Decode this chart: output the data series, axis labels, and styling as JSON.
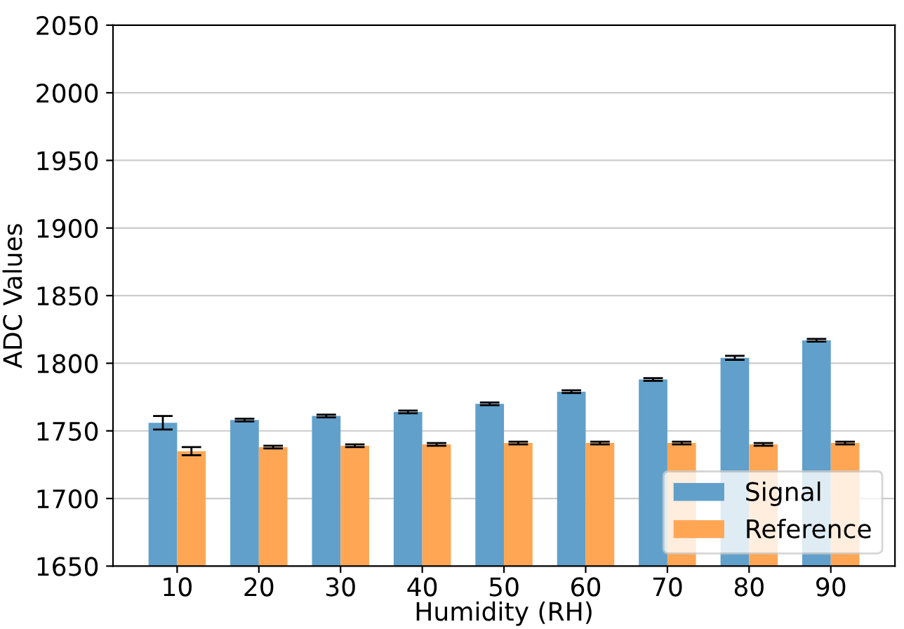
{
  "chart_data": {
    "type": "bar",
    "xlabel": "Humidity (RH)",
    "ylabel": "ADC Values",
    "categories": [
      "10",
      "20",
      "30",
      "40",
      "50",
      "60",
      "70",
      "80",
      "90"
    ],
    "series": [
      {
        "name": "Signal",
        "color": "#61a0ca",
        "values": [
          1756,
          1758,
          1761,
          1764,
          1770,
          1779,
          1788,
          1804,
          1817
        ],
        "errors": [
          5,
          1,
          1,
          1,
          1,
          1,
          1,
          1.5,
          1
        ]
      },
      {
        "name": "Reference",
        "color": "#ffa655",
        "values": [
          1735,
          1738,
          1739,
          1740,
          1741,
          1741,
          1741,
          1740,
          1741
        ],
        "errors": [
          3,
          1,
          1,
          1,
          1,
          1,
          1,
          1,
          1
        ]
      }
    ],
    "ylim": [
      1650,
      2050
    ],
    "yticks": [
      1650,
      1700,
      1750,
      1800,
      1850,
      1900,
      1950,
      2000,
      2050
    ],
    "grid": "y",
    "legend": "bottom right"
  }
}
